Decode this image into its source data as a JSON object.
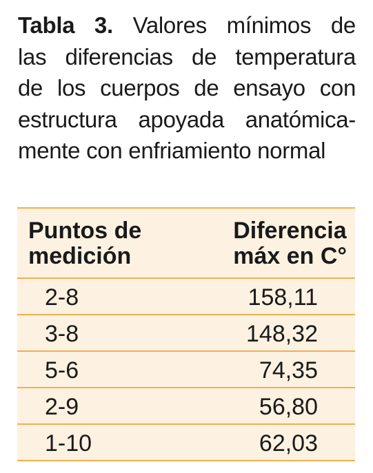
{
  "caption": {
    "label": "Tabla 3.",
    "lines": [
      "Valores mínimos de",
      "las diferencias de temperatura",
      "de los cuerpos de ensayo con",
      "estructura apoyada anatómica-",
      "mente con enfriamiento normal"
    ]
  },
  "table": {
    "headers": [
      [
        "Puntos de",
        "medición"
      ],
      [
        "Diferencia",
        "máx en C°"
      ]
    ],
    "rows": [
      [
        "2-8",
        "158,11"
      ],
      [
        "3-8",
        "148,32"
      ],
      [
        "5-6",
        "74,35"
      ],
      [
        "2-9",
        "56,80"
      ],
      [
        "1-10",
        "62,03"
      ]
    ]
  }
}
